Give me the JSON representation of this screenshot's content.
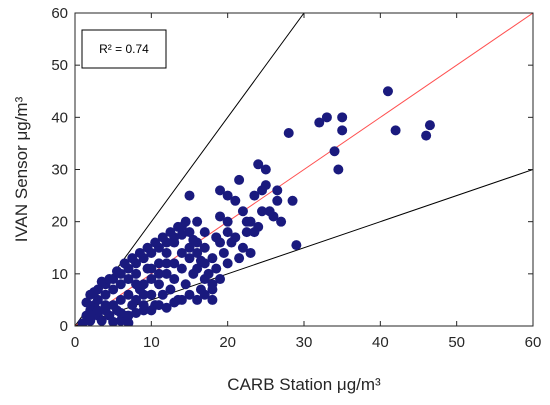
{
  "chart_data": {
    "type": "scatter",
    "xlabel": "CARB Station μg/m³",
    "ylabel": "IVAN Sensor μg/m³",
    "xlim": [
      0,
      60
    ],
    "ylim": [
      0,
      60
    ],
    "xticks": [
      "0",
      "10",
      "20",
      "30",
      "40",
      "50",
      "60"
    ],
    "yticks": [
      "0",
      "10",
      "20",
      "30",
      "40",
      "50",
      "60"
    ],
    "grid": false,
    "annotation": "R² = 0.74",
    "annotation_location": "top-left",
    "reference_lines": [
      {
        "slope": 2.0,
        "color": "#000000"
      },
      {
        "slope": 1.0,
        "color": "#ff5050"
      },
      {
        "slope": 0.5,
        "color": "#000000"
      }
    ],
    "marker_color": "#1a1a7e",
    "series": [
      {
        "points": [
          [
            1,
            0.5
          ],
          [
            1.5,
            2
          ],
          [
            2,
            1
          ],
          [
            2,
            3
          ],
          [
            2.5,
            4
          ],
          [
            3,
            2
          ],
          [
            3,
            5
          ],
          [
            3.5,
            1
          ],
          [
            4,
            3
          ],
          [
            4,
            6
          ],
          [
            4.5,
            2
          ],
          [
            5,
            4
          ],
          [
            5,
            7
          ],
          [
            5.5,
            3
          ],
          [
            6,
            5
          ],
          [
            6,
            8
          ],
          [
            6.5,
            2
          ],
          [
            7,
            6
          ],
          [
            7,
            9
          ],
          [
            7.5,
            4
          ],
          [
            8,
            5
          ],
          [
            8,
            10
          ],
          [
            8.5,
            7
          ],
          [
            9,
            3
          ],
          [
            9,
            8
          ],
          [
            9.5,
            11
          ],
          [
            10,
            6
          ],
          [
            10,
            9
          ],
          [
            10.5,
            4
          ],
          [
            11,
            8
          ],
          [
            11,
            12
          ],
          [
            11.5,
            6
          ],
          [
            12,
            10
          ],
          [
            12,
            14
          ],
          [
            12.5,
            7
          ],
          [
            13,
            9
          ],
          [
            13,
            16
          ],
          [
            13.5,
            5
          ],
          [
            14,
            11
          ],
          [
            14,
            19
          ],
          [
            14.5,
            8
          ],
          [
            15,
            13
          ],
          [
            15,
            25
          ],
          [
            15.5,
            10
          ],
          [
            16,
            14
          ],
          [
            16,
            20
          ],
          [
            16.5,
            7
          ],
          [
            17,
            12
          ],
          [
            17,
            15
          ],
          [
            18,
            5
          ],
          [
            18,
            8
          ],
          [
            18.5,
            17
          ],
          [
            19,
            26
          ],
          [
            19,
            21
          ],
          [
            20,
            25
          ],
          [
            20,
            20
          ],
          [
            21,
            17
          ],
          [
            21.5,
            28
          ],
          [
            22,
            22
          ],
          [
            22.5,
            18
          ],
          [
            23,
            14
          ],
          [
            23.5,
            25
          ],
          [
            24,
            31
          ],
          [
            24,
            19
          ],
          [
            24.5,
            22
          ],
          [
            25,
            27
          ],
          [
            25,
            30
          ],
          [
            26,
            21
          ],
          [
            26.5,
            24
          ],
          [
            27,
            20
          ],
          [
            28,
            37
          ],
          [
            28.5,
            24
          ],
          [
            29,
            15.5
          ],
          [
            32,
            39
          ],
          [
            33,
            40
          ],
          [
            34,
            33.5
          ],
          [
            34.5,
            30
          ],
          [
            35,
            37.5
          ],
          [
            35,
            40
          ],
          [
            41,
            45
          ],
          [
            42,
            37.5
          ],
          [
            46,
            36.5
          ],
          [
            46.5,
            38.5
          ],
          [
            2,
            6
          ],
          [
            3,
            7
          ],
          [
            4,
            8
          ],
          [
            5,
            9
          ],
          [
            6,
            10
          ],
          [
            7,
            11
          ],
          [
            8,
            12
          ],
          [
            9,
            13
          ],
          [
            10,
            14
          ],
          [
            11,
            15
          ],
          [
            12,
            16
          ],
          [
            13,
            17
          ],
          [
            14,
            17.5
          ],
          [
            15,
            18
          ],
          [
            16,
            16
          ],
          [
            17,
            18
          ],
          [
            6,
            1
          ],
          [
            7,
            2
          ],
          [
            8,
            2.5
          ],
          [
            9,
            4
          ],
          [
            10,
            3
          ],
          [
            11,
            4
          ],
          [
            12,
            3.5
          ],
          [
            13,
            4.5
          ],
          [
            14,
            5
          ],
          [
            15,
            6
          ],
          [
            16,
            5
          ],
          [
            17,
            6
          ],
          [
            18,
            7
          ],
          [
            19,
            9
          ],
          [
            20,
            12
          ],
          [
            21,
            24
          ],
          [
            22,
            15
          ],
          [
            23,
            20
          ],
          [
            5,
            0.8
          ],
          [
            6,
            2.5
          ],
          [
            7,
            0.6
          ],
          [
            8,
            8
          ],
          [
            9,
            6
          ],
          [
            10,
            11
          ],
          [
            11,
            10
          ],
          [
            12,
            12
          ],
          [
            13,
            12
          ],
          [
            14,
            14
          ],
          [
            15,
            15
          ],
          [
            16,
            11
          ],
          [
            17,
            9
          ],
          [
            18,
            13
          ],
          [
            19,
            16
          ],
          [
            20,
            18
          ],
          [
            4,
            4
          ],
          [
            3,
            3
          ],
          [
            2,
            2
          ],
          [
            1.5,
            4.5
          ],
          [
            2.5,
            6.5
          ],
          [
            3.5,
            8.5
          ],
          [
            4.5,
            9
          ],
          [
            5.5,
            10.5
          ],
          [
            6.5,
            12
          ],
          [
            7.5,
            13
          ],
          [
            8.5,
            14
          ],
          [
            9.5,
            15
          ],
          [
            10.5,
            16
          ],
          [
            11.5,
            17
          ],
          [
            12.5,
            18
          ],
          [
            13.5,
            19
          ],
          [
            14.5,
            20
          ],
          [
            15.5,
            16.5
          ],
          [
            16.5,
            12.5
          ],
          [
            17.5,
            10
          ],
          [
            18.5,
            11
          ],
          [
            19.5,
            14
          ],
          [
            20.5,
            16
          ],
          [
            21.5,
            13
          ],
          [
            22.5,
            20
          ],
          [
            23.5,
            18
          ],
          [
            24.5,
            26
          ],
          [
            25.5,
            22
          ],
          [
            26.5,
            26
          ]
        ]
      }
    ]
  }
}
